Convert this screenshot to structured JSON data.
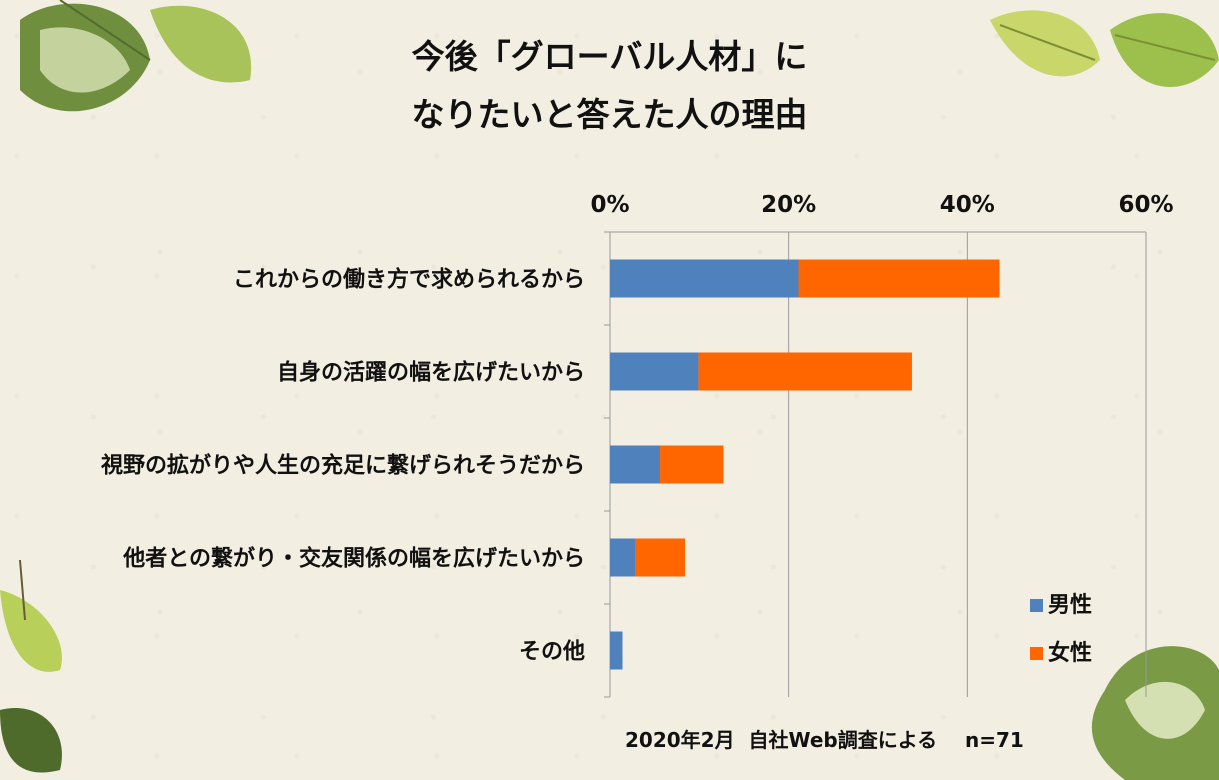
{
  "title_lines": [
    "今後「グローバル人材」に",
    "なりたいと答えた人の理由"
  ],
  "chart_data": {
    "type": "bar",
    "orientation": "horizontal",
    "stacked": true,
    "xlim": [
      0,
      60
    ],
    "x_ticks": [
      0,
      20,
      40,
      60
    ],
    "x_tick_labels": [
      "0%",
      "20%",
      "40%",
      "60%"
    ],
    "axis_position": "top",
    "grid": true,
    "categories": [
      "これからの働き方で求められるから",
      "自身の活躍の幅を広げたいから",
      "視野の拡がりや人生の充足に繋げられそうだから",
      "他者との繋がり・交友関係の幅を広げたいから",
      "その他"
    ],
    "series": [
      {
        "name": "男性",
        "color": "#4f81bd",
        "values": [
          21.1,
          9.9,
          5.6,
          2.8,
          1.4
        ]
      },
      {
        "name": "女性",
        "color": "#ff6600",
        "values": [
          22.5,
          23.9,
          7.1,
          5.6,
          0
        ]
      }
    ],
    "legend_position": "bottom-right"
  },
  "footnote": "2020年2月  自社Web調査による    n=71"
}
